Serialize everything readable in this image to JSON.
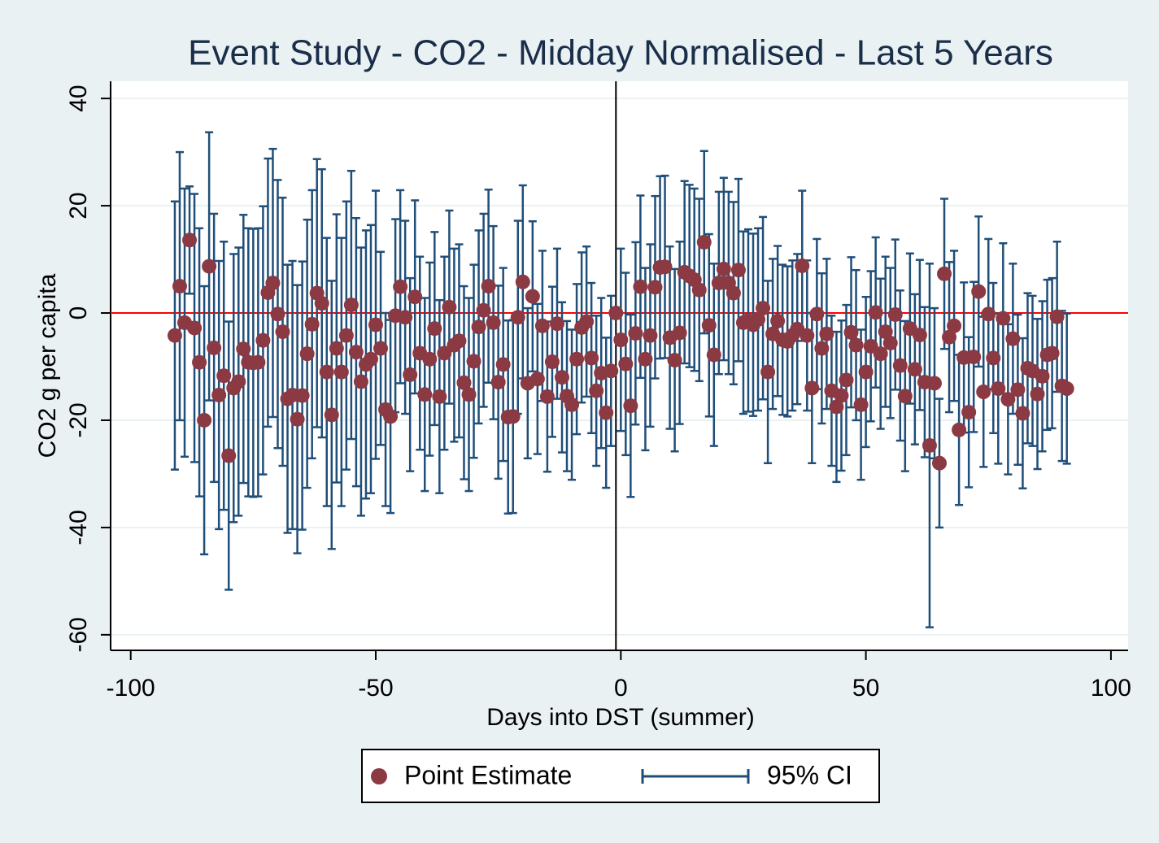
{
  "chart_data": {
    "type": "scatter",
    "title": "Event Study - CO2 - Midday Normalised - Last 5 Years",
    "x_label": "Days into DST (summer)",
    "y_label": "CO2 g per capita",
    "xlim": [
      -104.1,
      103.5
    ],
    "ylim": [
      -62.9,
      43.2
    ],
    "xticks": [
      -100,
      -50,
      0,
      50,
      100
    ],
    "yticks": [
      -60,
      -40,
      -20,
      0,
      20,
      40
    ],
    "grid": true,
    "hline": {
      "value": 0,
      "color": "#ff0000"
    },
    "vline": {
      "value": -1,
      "color": "#000000"
    },
    "x": [
      -91,
      -90,
      -89,
      -88,
      -87,
      -86,
      -85,
      -84,
      -83,
      -82,
      -81,
      -80,
      -79,
      -78,
      -77,
      -76,
      -75,
      -74,
      -73,
      -72,
      -71,
      -70,
      -69,
      -68,
      -67,
      -66,
      -65,
      -64,
      -63,
      -62,
      -61,
      -60,
      -59,
      -58,
      -57,
      -56,
      -55,
      -54,
      -53,
      -52,
      -51,
      -50,
      -49,
      -48,
      -47,
      -46,
      -45,
      -44,
      -43,
      -42,
      -41,
      -40,
      -39,
      -38,
      -37,
      -36,
      -35,
      -34,
      -33,
      -32,
      -31,
      -30,
      -29,
      -28,
      -27,
      -26,
      -25,
      -24,
      -23,
      -22,
      -21,
      -20,
      -19,
      -18,
      -17,
      -16,
      -15,
      -14,
      -13,
      -12,
      -11,
      -10,
      -9,
      -8,
      -7,
      -6,
      -5,
      -4,
      -3,
      -2,
      -1,
      0,
      1,
      2,
      3,
      4,
      5,
      6,
      7,
      8,
      9,
      10,
      11,
      12,
      13,
      14,
      15,
      16,
      17,
      18,
      19,
      20,
      21,
      22,
      23,
      24,
      25,
      26,
      27,
      28,
      29,
      30,
      31,
      32,
      33,
      34,
      35,
      36,
      37,
      38,
      39,
      40,
      41,
      42,
      43,
      44,
      45,
      46,
      47,
      48,
      49,
      50,
      51,
      52,
      53,
      54,
      55,
      56,
      57,
      58,
      59,
      60,
      61,
      62,
      63,
      64,
      65,
      66,
      67,
      68,
      69,
      70,
      71,
      72,
      73,
      74,
      75,
      76,
      77,
      78,
      79,
      80,
      81,
      82,
      83,
      84,
      85,
      86,
      87,
      88,
      89,
      90,
      91
    ],
    "series": [
      {
        "name": "Point Estimate",
        "color": "#8b3a44",
        "values": [
          -4.2,
          5,
          -1.8,
          13.6,
          -2.8,
          -9.2,
          -20,
          8.7,
          -6.5,
          -15.3,
          -11.7,
          -26.6,
          -14,
          -12.8,
          -6.7,
          -9.2,
          -9.3,
          -9.2,
          -5.1,
          3.8,
          5.6,
          -0.2,
          -3.5,
          -16,
          -15.3,
          -19.8,
          -15.4,
          -7.6,
          -2.1,
          3.7,
          1.8,
          -11,
          -19,
          -6.6,
          -11,
          -4.2,
          1.5,
          -7.3,
          -12.8,
          -9.6,
          -8.6,
          -2.2,
          -6.6,
          -18,
          -19.3,
          -0.5,
          4.9,
          -0.8,
          -11.5,
          3,
          -7.5,
          -15.2,
          -8.6,
          -2.9,
          -15.6,
          -7.5,
          1.1,
          -6,
          -5.2,
          -13,
          -15.2,
          -9,
          -2.6,
          0.5,
          5,
          -1.8,
          -12.9,
          -9.6,
          -19.4,
          -19.3,
          -0.8,
          5.8,
          -13.1,
          3.1,
          -12.3,
          -2.4,
          -15.6,
          -9.1,
          -2,
          -12,
          -15.5,
          -17.1,
          -8.6,
          -2.7,
          -1.6,
          -8.4,
          -14.5,
          -11.2,
          -18.6,
          -10.8,
          0,
          -5,
          -9.5,
          -17.3,
          -3.8,
          4.9,
          -8.6,
          -4.2,
          4.8,
          8.5,
          8.6,
          -4.6,
          -8.8,
          -3.7,
          7.6,
          6.9,
          6.2,
          4.3,
          13.2,
          -2.3,
          -7.8,
          5.6,
          8.2,
          5.6,
          3.7,
          8,
          -1.8,
          -1.4,
          -2.2,
          -1.2,
          0.9,
          -11,
          -3.9,
          -1.5,
          -5,
          -5.3,
          -4.2,
          -3,
          8.8,
          -4.2,
          -14,
          -0.2,
          -6.6,
          -3.9,
          -14.5,
          -17.5,
          -15.4,
          -12.5,
          -3.6,
          -6,
          -17.1,
          -11,
          -6.2,
          0.1,
          -7.6,
          -3.5,
          -5.6,
          -0.3,
          -9.8,
          -15.5,
          -2.9,
          -10.5,
          -4.1,
          -12.9,
          -24.7,
          -13.1,
          -28,
          7.3,
          -4.5,
          -2.4,
          -21.8,
          -8.3,
          -18.5,
          -8.2,
          4,
          -14.7,
          -0.2,
          -8.4,
          -14.1,
          -1,
          -16.1,
          -4.8,
          -14.3,
          -18.7,
          -10.3,
          -10.8,
          -15.1,
          -11.8,
          -7.8,
          -7.5,
          -0.7,
          -13.6,
          -14.1
        ]
      }
    ],
    "ci": {
      "name": "95% CI",
      "color": "#1f4e79",
      "lower": [
        -29.2,
        -20,
        -26.8,
        3.6,
        -27.8,
        -34.2,
        -45,
        -16.3,
        -31.5,
        -40.3,
        -36.7,
        -51.6,
        -39,
        -37.8,
        -31.7,
        -34.2,
        -34.3,
        -34.2,
        -30.1,
        -21.2,
        -19.4,
        -25.2,
        -28.5,
        -41,
        -40.3,
        -44.8,
        -40.4,
        -32.6,
        -27.1,
        -21.3,
        -23.2,
        -36,
        -44,
        -31.6,
        -36,
        -29.2,
        -23.5,
        -32.3,
        -37.8,
        -34.6,
        -33.6,
        -27.2,
        -24.6,
        -36,
        -37.3,
        -18.5,
        -13.1,
        -18.8,
        -29.5,
        -15,
        -25.5,
        -33.2,
        -26.6,
        -20.9,
        -33.6,
        -25.5,
        -16.9,
        -24,
        -23.2,
        -31,
        -33.2,
        -27,
        -20.6,
        -17.5,
        -13,
        -19.8,
        -30.9,
        -27.6,
        -37.4,
        -37.3,
        -18.8,
        -12.2,
        -27.1,
        -10.9,
        -26.3,
        -16.4,
        -29.6,
        -23.1,
        -16,
        -26,
        -29.5,
        -31.1,
        -22.6,
        -16.7,
        -15.6,
        -22.4,
        -28.5,
        -25.2,
        -32.6,
        -24.8,
        0,
        -22,
        -26.5,
        -34.3,
        -20.8,
        -12.1,
        -25.6,
        -21.2,
        -12.2,
        -8.5,
        -8.4,
        -21.6,
        -25.8,
        -20.7,
        -9.4,
        -10.1,
        -10.8,
        -12.7,
        -3.8,
        -19.3,
        -24.8,
        -11.4,
        -8.8,
        -11.4,
        -13.3,
        -9,
        -18.8,
        -18.4,
        -19.2,
        -18.2,
        -16.1,
        -28,
        -17.9,
        -15.5,
        -19,
        -19.3,
        -18.2,
        -17,
        -5.2,
        -18.2,
        -28,
        -14.2,
        -20.6,
        -17.9,
        -28.5,
        -31.5,
        -29.4,
        -26.5,
        -17.6,
        -20,
        -31.1,
        -25,
        -20.2,
        -13.9,
        -21.6,
        -17.5,
        -19.6,
        -14.3,
        -23.8,
        -29.5,
        -16.9,
        -24.5,
        -18.1,
        -26.9,
        -58.6,
        -27.1,
        -40,
        -6.7,
        -18.5,
        -16.4,
        -35.8,
        -22.3,
        -32.5,
        -22.2,
        -10,
        -28.7,
        -14.2,
        -22.4,
        -28.1,
        -15,
        -30.1,
        -18.8,
        -28.3,
        -32.7,
        -24.3,
        -24.8,
        -29.1,
        -25.8,
        -21.8,
        -21.5,
        -14.7,
        -27.6,
        -28.1
      ],
      "upper": [
        20.8,
        30,
        23.2,
        23.6,
        22.2,
        15.8,
        5,
        33.7,
        18.5,
        9.7,
        13.3,
        -1.6,
        11,
        12.2,
        18.3,
        15.8,
        15.7,
        15.8,
        19.9,
        28.8,
        30.6,
        24.8,
        21.5,
        9,
        9.7,
        5.2,
        9.6,
        17.4,
        22.9,
        28.7,
        26.8,
        14,
        6,
        18.4,
        14,
        20.8,
        26.5,
        17.7,
        12.2,
        15.4,
        16.4,
        22.8,
        11.4,
        0,
        -1.3,
        17.5,
        22.9,
        17.2,
        6.5,
        21,
        10.5,
        2.8,
        9.4,
        15.1,
        2.4,
        10.5,
        19.1,
        12,
        12.8,
        5,
        2.8,
        9,
        15.4,
        18.5,
        23,
        16.2,
        5.1,
        8.4,
        -1.4,
        -1.3,
        17.2,
        23.8,
        0.9,
        17.1,
        1.7,
        11.6,
        -1.6,
        4.9,
        12,
        2,
        -1.5,
        -3.1,
        5.4,
        11.3,
        12.4,
        5.6,
        -0.5,
        2.8,
        -4.6,
        3.2,
        0,
        12,
        7.5,
        -0.3,
        13.2,
        21.9,
        8.4,
        12.8,
        21.8,
        25.5,
        25.6,
        12.4,
        8.2,
        13.3,
        24.6,
        23.9,
        23.2,
        21.3,
        30.2,
        14.7,
        9.2,
        22.6,
        25.2,
        22.6,
        20.7,
        25,
        15.2,
        15.6,
        14.8,
        15.8,
        17.9,
        6,
        10.1,
        12.5,
        9,
        8.7,
        9.8,
        11,
        22.8,
        9.8,
        0,
        13.8,
        7.4,
        10.1,
        -0.5,
        -3.5,
        -1.4,
        1.5,
        10.4,
        8,
        -3.1,
        3,
        7.8,
        14.1,
        6.4,
        10.5,
        8.4,
        13.7,
        4.2,
        -1.5,
        11.1,
        3.5,
        9.9,
        1.1,
        9.2,
        0.9,
        -16,
        21.3,
        9.5,
        11.6,
        -7.8,
        5.7,
        -4.5,
        5.8,
        18,
        -0.7,
        13.8,
        5.6,
        -0.1,
        13,
        -2.1,
        9.2,
        -0.3,
        -4.7,
        3.7,
        3.2,
        -1.1,
        2.2,
        6.2,
        6.5,
        13.3,
        0.4,
        -0.1
      ]
    }
  }
}
